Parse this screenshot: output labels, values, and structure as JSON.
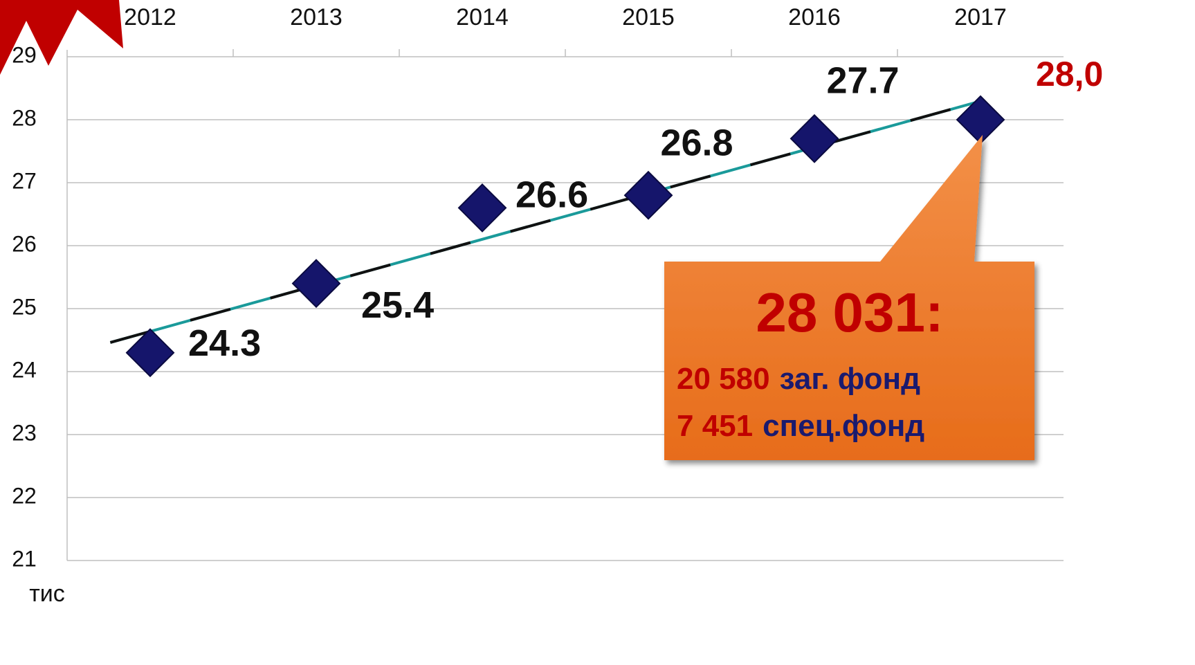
{
  "chart_data": {
    "type": "scatter",
    "categories": [
      "2012",
      "2013",
      "2014",
      "2015",
      "2016",
      "2017"
    ],
    "values": [
      24.3,
      25.4,
      26.6,
      26.8,
      27.7,
      28.0
    ],
    "value_labels": [
      "24.3",
      "25.4",
      "26.6",
      "26.8",
      "27.7",
      "28,0"
    ],
    "color": "#15156b",
    "trendline": true,
    "ylim": [
      21,
      29
    ],
    "yticks": [
      21,
      22,
      23,
      24,
      25,
      26,
      27,
      28,
      29
    ],
    "grid": true,
    "y_unit_label": "тис"
  },
  "callout": {
    "total": "28 031:",
    "lines": [
      {
        "amount": "20 580",
        "label": "заг. фонд"
      },
      {
        "amount": "7 451",
        "label": "спец.фонд"
      }
    ]
  }
}
